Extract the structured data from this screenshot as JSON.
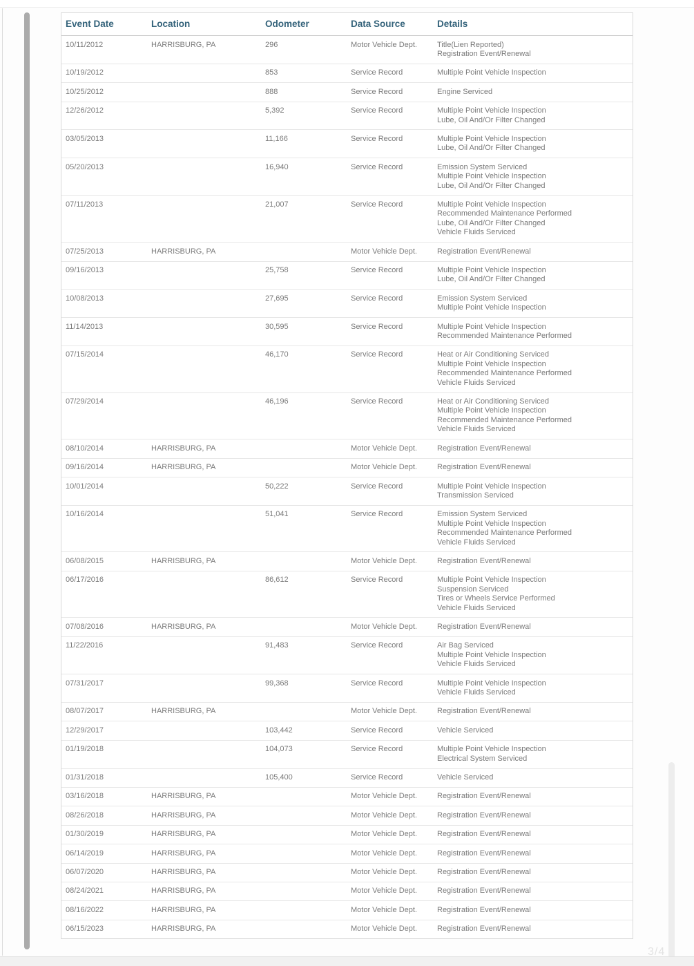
{
  "colors": {
    "header_text": "#33627a",
    "body_text": "#7a7a7a",
    "row_divider": "#e7e7e7",
    "card_border": "#d9d9d9",
    "left_scrollbar": "#ababab",
    "right_scrollbar": "#ededed"
  },
  "page_indicator": "3/4",
  "table": {
    "columns": [
      "Event Date",
      "Location",
      "Odometer",
      "Data Source",
      "Details"
    ],
    "rows": [
      {
        "date": "10/11/2012",
        "location": "HARRISBURG, PA",
        "odometer": "296",
        "source": "Motor Vehicle Dept.",
        "details": [
          "Title(Lien Reported)",
          "Registration Event/Renewal"
        ]
      },
      {
        "date": "10/19/2012",
        "location": "",
        "odometer": "853",
        "source": "Service Record",
        "details": [
          "Multiple Point Vehicle Inspection"
        ]
      },
      {
        "date": "10/25/2012",
        "location": "",
        "odometer": "888",
        "source": "Service Record",
        "details": [
          "Engine Serviced"
        ]
      },
      {
        "date": "12/26/2012",
        "location": "",
        "odometer": "5,392",
        "source": "Service Record",
        "details": [
          "Multiple Point Vehicle Inspection",
          "Lube, Oil And/Or Filter Changed"
        ]
      },
      {
        "date": "03/05/2013",
        "location": "",
        "odometer": "11,166",
        "source": "Service Record",
        "details": [
          "Multiple Point Vehicle Inspection",
          "Lube, Oil And/Or Filter Changed"
        ]
      },
      {
        "date": "05/20/2013",
        "location": "",
        "odometer": "16,940",
        "source": "Service Record",
        "details": [
          "Emission System Serviced",
          "Multiple Point Vehicle Inspection",
          "Lube, Oil And/Or Filter Changed"
        ]
      },
      {
        "date": "07/11/2013",
        "location": "",
        "odometer": "21,007",
        "source": "Service Record",
        "details": [
          "Multiple Point Vehicle Inspection",
          "Recommended Maintenance Performed",
          "Lube, Oil And/Or Filter Changed",
          "Vehicle Fluids Serviced"
        ]
      },
      {
        "date": "07/25/2013",
        "location": "HARRISBURG, PA",
        "odometer": "",
        "source": "Motor Vehicle Dept.",
        "details": [
          "Registration Event/Renewal"
        ]
      },
      {
        "date": "09/16/2013",
        "location": "",
        "odometer": "25,758",
        "source": "Service Record",
        "details": [
          "Multiple Point Vehicle Inspection",
          "Lube, Oil And/Or Filter Changed"
        ]
      },
      {
        "date": "10/08/2013",
        "location": "",
        "odometer": "27,695",
        "source": "Service Record",
        "details": [
          "Emission System Serviced",
          "Multiple Point Vehicle Inspection"
        ]
      },
      {
        "date": "11/14/2013",
        "location": "",
        "odometer": "30,595",
        "source": "Service Record",
        "details": [
          "Multiple Point Vehicle Inspection",
          "Recommended Maintenance Performed"
        ]
      },
      {
        "date": "07/15/2014",
        "location": "",
        "odometer": "46,170",
        "source": "Service Record",
        "details": [
          "Heat or Air Conditioning Serviced",
          "Multiple Point Vehicle Inspection",
          "Recommended Maintenance Performed",
          "Vehicle Fluids Serviced"
        ]
      },
      {
        "date": "07/29/2014",
        "location": "",
        "odometer": "46,196",
        "source": "Service Record",
        "details": [
          "Heat or Air Conditioning Serviced",
          "Multiple Point Vehicle Inspection",
          "Recommended Maintenance Performed",
          "Vehicle Fluids Serviced"
        ]
      },
      {
        "date": "08/10/2014",
        "location": "HARRISBURG, PA",
        "odometer": "",
        "source": "Motor Vehicle Dept.",
        "details": [
          "Registration Event/Renewal"
        ]
      },
      {
        "date": "09/16/2014",
        "location": "HARRISBURG, PA",
        "odometer": "",
        "source": "Motor Vehicle Dept.",
        "details": [
          "Registration Event/Renewal"
        ]
      },
      {
        "date": "10/01/2014",
        "location": "",
        "odometer": "50,222",
        "source": "Service Record",
        "details": [
          "Multiple Point Vehicle Inspection",
          "Transmission Serviced"
        ]
      },
      {
        "date": "10/16/2014",
        "location": "",
        "odometer": "51,041",
        "source": "Service Record",
        "details": [
          "Emission System Serviced",
          "Multiple Point Vehicle Inspection",
          "Recommended Maintenance Performed",
          "Vehicle Fluids Serviced"
        ]
      },
      {
        "date": "06/08/2015",
        "location": "HARRISBURG, PA",
        "odometer": "",
        "source": "Motor Vehicle Dept.",
        "details": [
          "Registration Event/Renewal"
        ]
      },
      {
        "date": "06/17/2016",
        "location": "",
        "odometer": "86,612",
        "source": "Service Record",
        "details": [
          "Multiple Point Vehicle Inspection",
          "Suspension Serviced",
          "Tires or Wheels Service Performed",
          "Vehicle Fluids Serviced"
        ]
      },
      {
        "date": "07/08/2016",
        "location": "HARRISBURG, PA",
        "odometer": "",
        "source": "Motor Vehicle Dept.",
        "details": [
          "Registration Event/Renewal"
        ]
      },
      {
        "date": "11/22/2016",
        "location": "",
        "odometer": "91,483",
        "source": "Service Record",
        "details": [
          "Air Bag Serviced",
          "Multiple Point Vehicle Inspection",
          "Vehicle Fluids Serviced"
        ]
      },
      {
        "date": "07/31/2017",
        "location": "",
        "odometer": "99,368",
        "source": "Service Record",
        "details": [
          "Multiple Point Vehicle Inspection",
          "Vehicle Fluids Serviced"
        ]
      },
      {
        "date": "08/07/2017",
        "location": "HARRISBURG, PA",
        "odometer": "",
        "source": "Motor Vehicle Dept.",
        "details": [
          "Registration Event/Renewal"
        ]
      },
      {
        "date": "12/29/2017",
        "location": "",
        "odometer": "103,442",
        "source": "Service Record",
        "details": [
          "Vehicle Serviced"
        ]
      },
      {
        "date": "01/19/2018",
        "location": "",
        "odometer": "104,073",
        "source": "Service Record",
        "details": [
          "Multiple Point Vehicle Inspection",
          "Electrical System Serviced"
        ]
      },
      {
        "date": "01/31/2018",
        "location": "",
        "odometer": "105,400",
        "source": "Service Record",
        "details": [
          "Vehicle Serviced"
        ]
      },
      {
        "date": "03/16/2018",
        "location": "HARRISBURG, PA",
        "odometer": "",
        "source": "Motor Vehicle Dept.",
        "details": [
          "Registration Event/Renewal"
        ]
      },
      {
        "date": "08/26/2018",
        "location": "HARRISBURG, PA",
        "odometer": "",
        "source": "Motor Vehicle Dept.",
        "details": [
          "Registration Event/Renewal"
        ]
      },
      {
        "date": "01/30/2019",
        "location": "HARRISBURG, PA",
        "odometer": "",
        "source": "Motor Vehicle Dept.",
        "details": [
          "Registration Event/Renewal"
        ]
      },
      {
        "date": "06/14/2019",
        "location": "HARRISBURG, PA",
        "odometer": "",
        "source": "Motor Vehicle Dept.",
        "details": [
          "Registration Event/Renewal"
        ]
      },
      {
        "date": "06/07/2020",
        "location": "HARRISBURG, PA",
        "odometer": "",
        "source": "Motor Vehicle Dept.",
        "details": [
          "Registration Event/Renewal"
        ]
      },
      {
        "date": "08/24/2021",
        "location": "HARRISBURG, PA",
        "odometer": "",
        "source": "Motor Vehicle Dept.",
        "details": [
          "Registration Event/Renewal"
        ]
      },
      {
        "date": "08/16/2022",
        "location": "HARRISBURG, PA",
        "odometer": "",
        "source": "Motor Vehicle Dept.",
        "details": [
          "Registration Event/Renewal"
        ]
      },
      {
        "date": "06/15/2023",
        "location": "HARRISBURG, PA",
        "odometer": "",
        "source": "Motor Vehicle Dept.",
        "details": [
          "Registration Event/Renewal"
        ]
      }
    ]
  }
}
